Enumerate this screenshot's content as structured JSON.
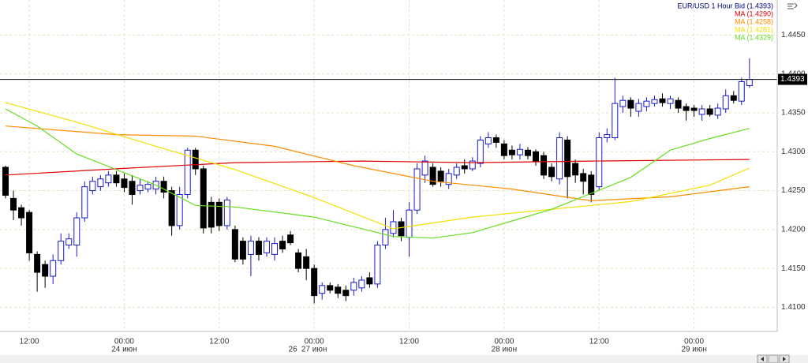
{
  "chart_data": {
    "type": "candlestick",
    "title": "EUR/USD 1 Hour Bid (1.4393)",
    "categories": [
      null,
      null,
      null,
      "12:00",
      null,
      null,
      null,
      null,
      null,
      null,
      null,
      null,
      null,
      null,
      null,
      "00:00",
      null,
      null,
      null,
      null,
      null,
      null,
      null,
      null,
      null,
      null,
      null,
      "12:00",
      null,
      null,
      null,
      null,
      null,
      null,
      null,
      null,
      null,
      null,
      null,
      "00:00",
      null,
      null,
      null,
      null,
      null,
      null,
      null,
      null,
      null,
      null,
      null,
      "12:00",
      null,
      null,
      null,
      null,
      null,
      null,
      null,
      null,
      null,
      null,
      null,
      "00:00",
      null,
      null,
      null,
      null,
      null,
      null,
      null,
      null,
      null,
      null,
      null,
      "12:00",
      null,
      null,
      null,
      null,
      null,
      null,
      null,
      null,
      null,
      null,
      null,
      "00:00",
      null,
      null,
      null,
      null,
      null,
      null,
      null
    ],
    "dates": [
      null,
      null,
      null,
      null,
      null,
      null,
      null,
      null,
      null,
      null,
      null,
      null,
      null,
      null,
      null,
      "24 июн",
      null,
      null,
      null,
      null,
      null,
      null,
      null,
      null,
      null,
      null,
      null,
      null,
      null,
      null,
      null,
      null,
      null,
      null,
      null,
      null,
      "26",
      null,
      null,
      "27 июн",
      null,
      null,
      null,
      null,
      null,
      null,
      null,
      null,
      null,
      null,
      null,
      null,
      null,
      null,
      null,
      null,
      null,
      null,
      null,
      null,
      null,
      null,
      null,
      "28 июн",
      null,
      null,
      null,
      null,
      null,
      null,
      null,
      null,
      null,
      null,
      null,
      null,
      null,
      null,
      null,
      null,
      null,
      null,
      null,
      null,
      null,
      null,
      null,
      "29 июн",
      null,
      null,
      null,
      null,
      null,
      null,
      null
    ],
    "open": [
      1.428,
      1.424,
      1.4228,
      1.4222,
      1.4168,
      1.4155,
      1.414,
      1.416,
      1.418,
      1.418,
      1.4215,
      1.425,
      1.4255,
      1.426,
      1.427,
      1.4265,
      1.4262,
      1.425,
      1.4252,
      1.4252,
      1.4262,
      1.425,
      1.4205,
      1.4245,
      1.4302,
      1.4278,
      1.4235,
      1.4235,
      1.4205,
      1.42,
      1.4185,
      1.4168,
      1.4185,
      1.417,
      1.4168,
      1.4185,
      1.4193,
      1.417,
      1.4165,
      1.415,
      1.4118,
      1.4128,
      1.4126,
      1.4122,
      1.4122,
      1.4125,
      1.4138,
      1.413,
      1.418,
      1.4195,
      1.421,
      1.419,
      1.4225,
      1.427,
      1.428,
      1.4275,
      1.4258,
      1.427,
      1.4282,
      1.4278,
      1.4285,
      1.431,
      1.4318,
      1.431,
      1.4302,
      1.4296,
      1.4302,
      1.43,
      1.4295,
      1.428,
      1.4265,
      1.4315,
      1.4285,
      1.4272,
      1.427,
      1.4255,
      1.4318,
      1.4318,
      1.4358,
      1.4366,
      1.4352,
      1.4358,
      1.4362,
      1.4368,
      1.4362,
      1.4366,
      1.4358,
      1.4356,
      1.4348,
      1.4355,
      1.4347,
      1.4355,
      1.4372,
      1.4365,
      1.4385
    ],
    "high": [
      1.4282,
      1.425,
      1.4232,
      1.4225,
      1.4172,
      1.416,
      1.4168,
      1.4195,
      1.4195,
      1.4222,
      1.4262,
      1.4268,
      1.427,
      1.4275,
      1.4275,
      1.4272,
      1.427,
      1.4265,
      1.4262,
      1.4268,
      1.4268,
      1.4255,
      1.4255,
      1.4305,
      1.4305,
      1.4282,
      1.4242,
      1.424,
      1.4242,
      1.4205,
      1.419,
      1.4192,
      1.419,
      1.419,
      1.419,
      1.4192,
      1.4198,
      1.4175,
      1.4175,
      1.4155,
      1.4132,
      1.4132,
      1.413,
      1.4128,
      1.4138,
      1.414,
      1.4145,
      1.4185,
      1.4215,
      1.4225,
      1.4215,
      1.4235,
      1.4285,
      1.4295,
      1.4285,
      1.428,
      1.4278,
      1.4285,
      1.429,
      1.4293,
      1.432,
      1.4325,
      1.4322,
      1.4315,
      1.4308,
      1.431,
      1.4306,
      1.4303,
      1.43,
      1.4285,
      1.4325,
      1.432,
      1.429,
      1.4278,
      1.4275,
      1.4325,
      1.433,
      1.4395,
      1.4372,
      1.437,
      1.4368,
      1.437,
      1.4372,
      1.4375,
      1.4372,
      1.437,
      1.4362,
      1.436,
      1.436,
      1.436,
      1.4362,
      1.438,
      1.4378,
      1.4395,
      1.442
    ],
    "low": [
      1.424,
      1.4212,
      1.4205,
      1.416,
      1.412,
      1.4125,
      1.413,
      1.4155,
      1.4175,
      1.4165,
      1.421,
      1.4245,
      1.425,
      1.4255,
      1.4255,
      1.4248,
      1.4232,
      1.4245,
      1.4248,
      1.4245,
      1.424,
      1.4192,
      1.42,
      1.424,
      1.427,
      1.4195,
      1.4195,
      1.4198,
      1.42,
      1.4158,
      1.4155,
      1.414,
      1.416,
      1.4165,
      1.416,
      1.417,
      1.418,
      1.4145,
      1.4135,
      1.4105,
      1.411,
      1.4118,
      1.4112,
      1.4108,
      1.4115,
      1.412,
      1.4125,
      1.4125,
      1.4175,
      1.419,
      1.4185,
      1.4165,
      1.422,
      1.426,
      1.4255,
      1.4255,
      1.4252,
      1.4265,
      1.4272,
      1.4275,
      1.428,
      1.4305,
      1.4305,
      1.429,
      1.429,
      1.429,
      1.429,
      1.4282,
      1.4265,
      1.4262,
      1.4258,
      1.424,
      1.426,
      1.4245,
      1.4235,
      1.425,
      1.4312,
      1.4315,
      1.435,
      1.4345,
      1.4345,
      1.4352,
      1.4358,
      1.4358,
      1.4355,
      1.435,
      1.434,
      1.4345,
      1.434,
      1.4345,
      1.4342,
      1.435,
      1.4362,
      1.436,
      1.4382
    ],
    "close": [
      1.4244,
      1.4225,
      1.4215,
      1.417,
      1.4145,
      1.414,
      1.416,
      1.4185,
      1.4188,
      1.4215,
      1.4255,
      1.4262,
      1.4265,
      1.427,
      1.426,
      1.4254,
      1.4245,
      1.4257,
      1.4258,
      1.4262,
      1.4248,
      1.4205,
      1.4245,
      1.4302,
      1.4278,
      1.4202,
      1.4203,
      1.4205,
      1.4238,
      1.4162,
      1.4162,
      1.4185,
      1.4168,
      1.4185,
      1.4182,
      1.4175,
      1.4183,
      1.415,
      1.415,
      1.4115,
      1.4128,
      1.4122,
      1.4118,
      1.4115,
      1.4132,
      1.4135,
      1.413,
      1.418,
      1.42,
      1.421,
      1.4192,
      1.4225,
      1.4278,
      1.4288,
      1.4258,
      1.4262,
      1.4272,
      1.428,
      1.4278,
      1.4288,
      1.4315,
      1.4318,
      1.4312,
      1.4295,
      1.4296,
      1.4303,
      1.4295,
      1.4288,
      1.427,
      1.4268,
      1.4318,
      1.4268,
      1.427,
      1.4262,
      1.4245,
      1.4318,
      1.4322,
      1.4362,
      1.4366,
      1.4356,
      1.4362,
      1.4365,
      1.4367,
      1.4363,
      1.4368,
      1.4356,
      1.4353,
      1.4353,
      1.4355,
      1.4348,
      1.4356,
      1.4372,
      1.4366,
      1.439,
      1.4393
    ],
    "up_color": "#1a1acc",
    "down_color": "#000000",
    "series": [
      {
        "name": "MA (1.4290)",
        "color": "#e00000",
        "x": [
          0,
          14,
          29,
          45,
          59,
          74,
          94
        ],
        "values": [
          1.427,
          1.4278,
          1.4286,
          1.4288,
          1.4286,
          1.4288,
          1.429
        ]
      },
      {
        "name": "MA (1.4258)",
        "color": "#ff8c00",
        "x": [
          0,
          14,
          24,
          34,
          44,
          54,
          64,
          74,
          84,
          94
        ],
        "values": [
          1.4333,
          1.4322,
          1.432,
          1.4307,
          1.4282,
          1.4262,
          1.4252,
          1.4237,
          1.4242,
          1.4255
        ]
      },
      {
        "name": "MA (1.4281)",
        "color": "#f0e000",
        "x": [
          0,
          9,
          19,
          29,
          39,
          49,
          59,
          69,
          79,
          89,
          94
        ],
        "values": [
          1.4363,
          1.4338,
          1.4307,
          1.4277,
          1.4241,
          1.4201,
          1.4216,
          1.4226,
          1.4236,
          1.4257,
          1.4279
        ]
      },
      {
        "name": "MA (1.4329)",
        "color": "#66dd22",
        "x": [
          0,
          4,
          9,
          14,
          19,
          24,
          29,
          39,
          49,
          54,
          59,
          64,
          69,
          79,
          84,
          89,
          94
        ],
        "values": [
          1.4355,
          1.4333,
          1.4297,
          1.4277,
          1.4257,
          1.4231,
          1.4229,
          1.4216,
          1.4191,
          1.4189,
          1.4196,
          1.4211,
          1.4226,
          1.4267,
          1.4302,
          1.4317,
          1.433
        ]
      }
    ],
    "last_price": 1.4393,
    "ylim": [
      1.4069,
      1.4495
    ],
    "yticks": [
      {
        "value": 1.41,
        "label": "1.4100"
      },
      {
        "value": 1.415,
        "label": "1.4150"
      },
      {
        "value": 1.42,
        "label": "1.4200"
      },
      {
        "value": 1.425,
        "label": "1.4250"
      },
      {
        "value": 1.43,
        "label": "1.4300"
      },
      {
        "value": 1.435,
        "label": "1.4350"
      },
      {
        "value": 1.44,
        "label": "1.4400"
      },
      {
        "value": 1.445,
        "label": "1.4450"
      }
    ],
    "grid": true
  }
}
